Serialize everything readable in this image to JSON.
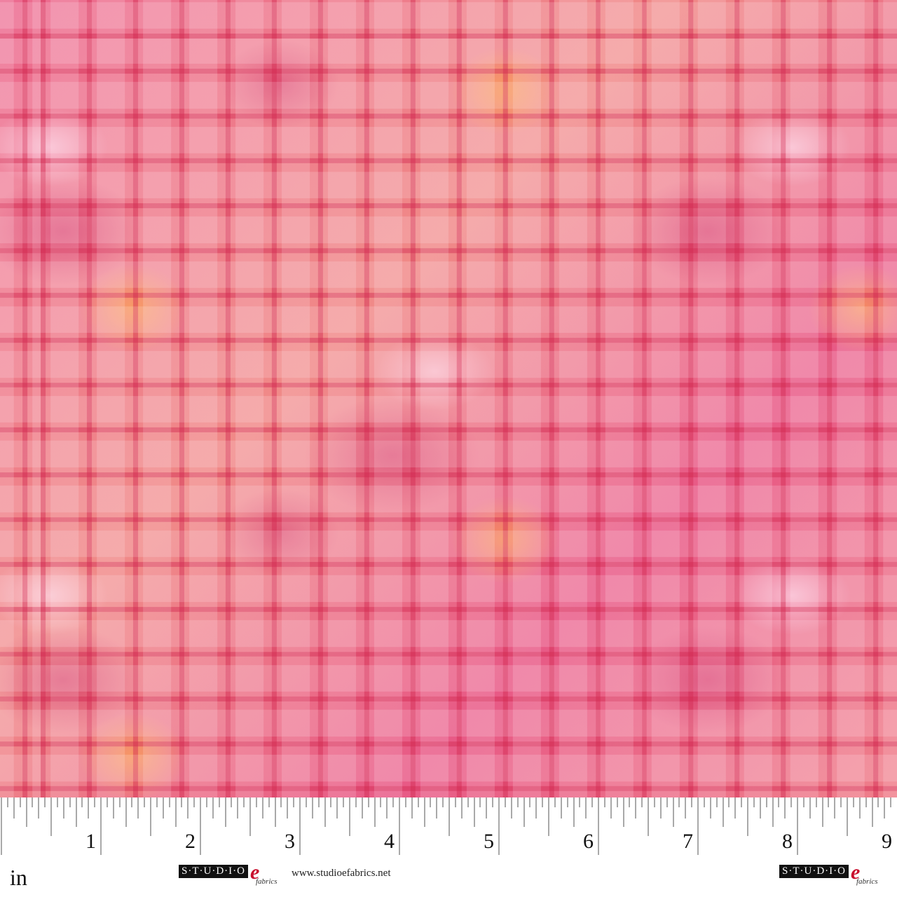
{
  "image": {
    "subject": "fabric-swatch",
    "colors": {
      "base_pink": "#ec6a8f",
      "deep_magenta": "#c81450",
      "orange_accent": "#ffaa3c",
      "light_pink": "#ffdcf0"
    }
  },
  "ruler": {
    "unit": "in",
    "numbers": [
      "1",
      "2",
      "3",
      "4",
      "5",
      "6",
      "7",
      "8",
      "9"
    ]
  },
  "branding": {
    "logo_text": "S·T·U·D·I·O",
    "logo_e": "e",
    "logo_sub": "fabrics",
    "url": "www.studioefabrics.net"
  }
}
